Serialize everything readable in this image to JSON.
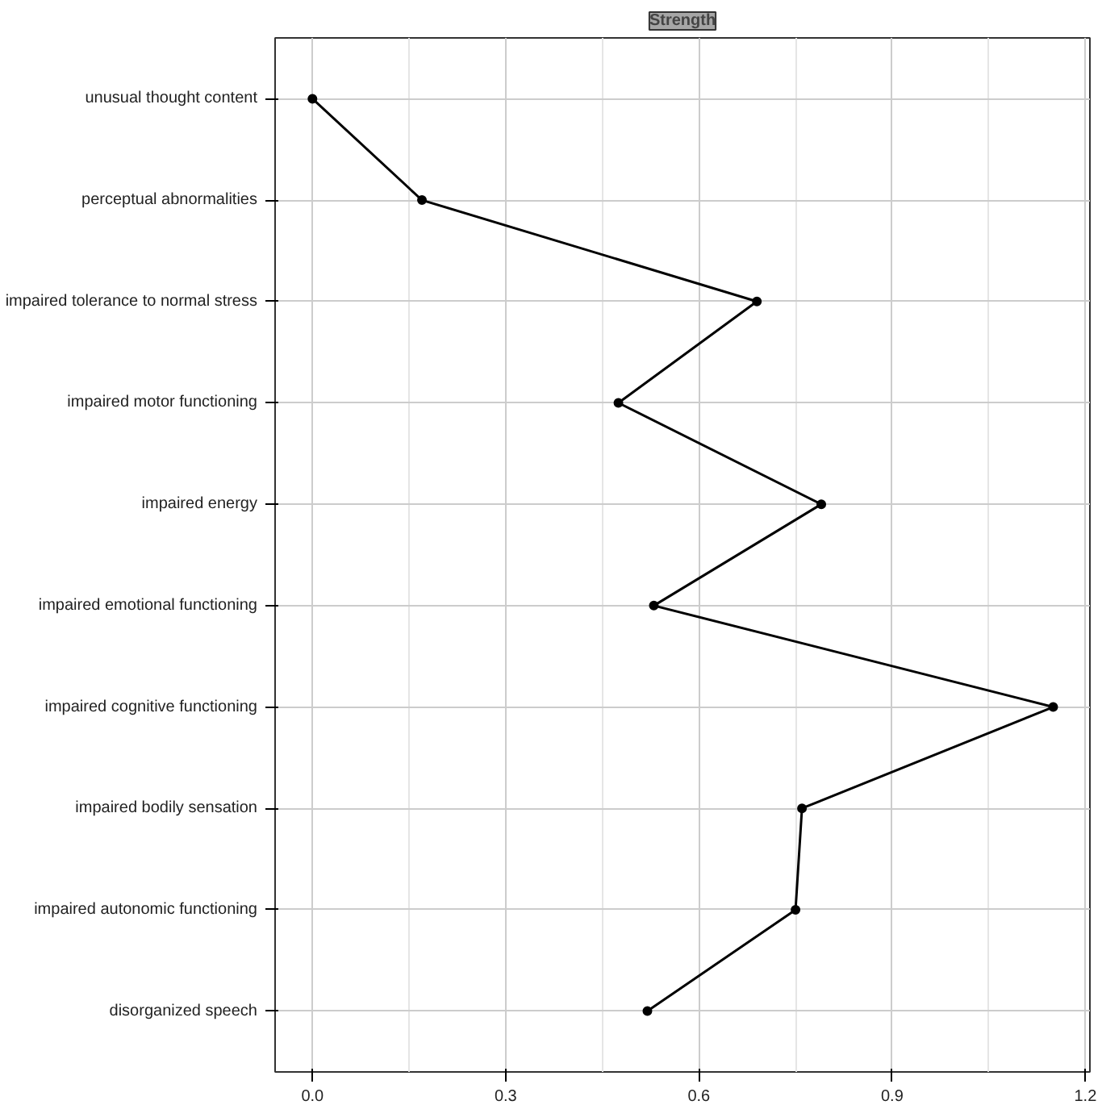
{
  "chart_data": {
    "type": "line",
    "orientation": "horizontal",
    "title": "Strength",
    "categories": [
      "unusual thought content",
      "perceptual abnormalities",
      "impaired tolerance to normal stress",
      "impaired motor functioning",
      "impaired energy",
      "impaired emotional functioning",
      "impaired cognitive functioning",
      "impaired bodily sensation",
      "impaired autonomic functioning",
      "disorganized speech"
    ],
    "series": [
      {
        "color": "#000000",
        "values": [
          0.0,
          0.17,
          0.69,
          0.475,
          0.79,
          0.53,
          1.15,
          0.76,
          0.75,
          0.52
        ]
      }
    ],
    "xlim": [
      -0.058,
      1.207
    ],
    "xticks": [
      {
        "value": 0,
        "label": "0.0"
      },
      0.3,
      0.6,
      0.9,
      1.2
    ],
    "grid": true,
    "marker": "circle",
    "line_style": "solid"
  }
}
